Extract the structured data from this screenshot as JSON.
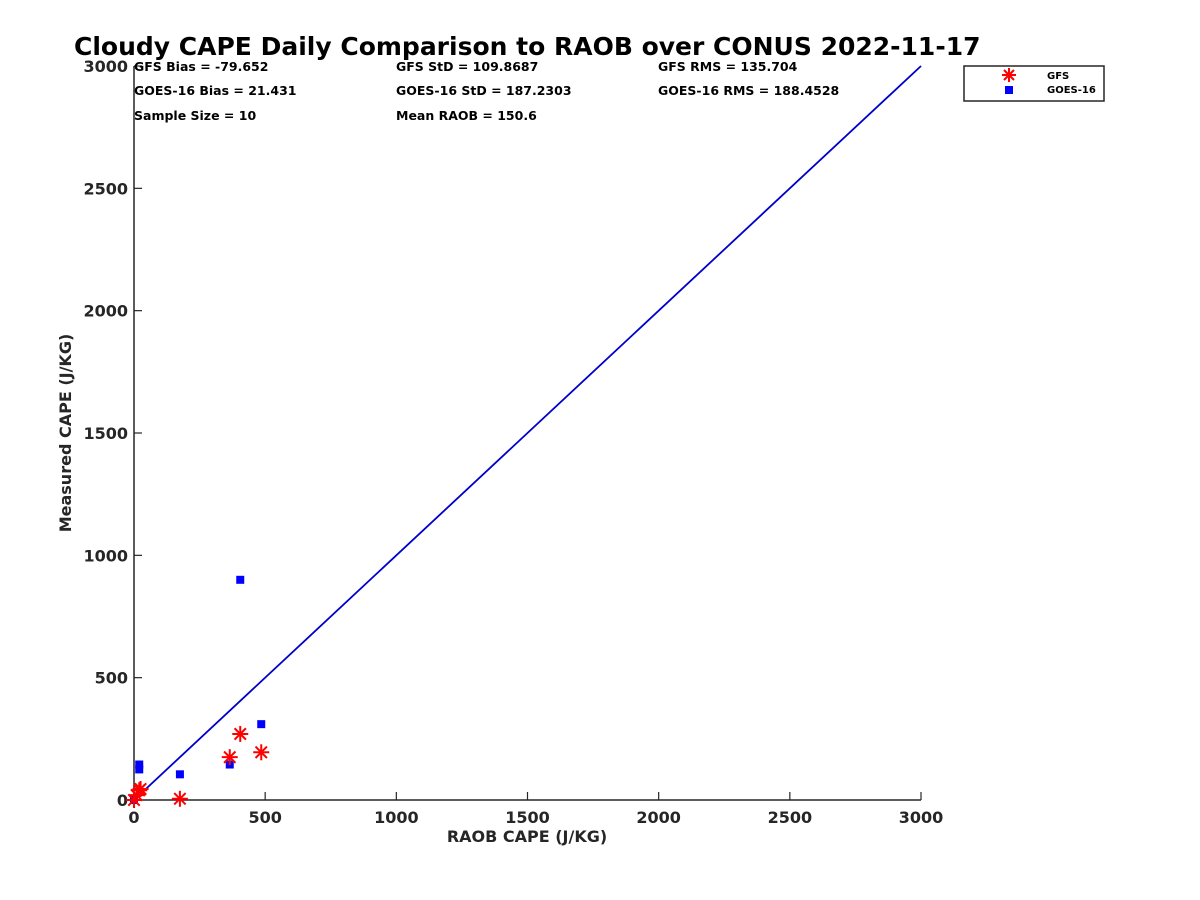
{
  "chart_data": {
    "type": "scatter",
    "title": "Cloudy CAPE Daily Comparison to RAOB over CONUS 2022-11-17",
    "xlabel": "RAOB CAPE (J/KG)",
    "ylabel": "Measured CAPE (J/KG)",
    "xlim": [
      0,
      3000
    ],
    "ylim": [
      0,
      3000
    ],
    "xticks": [
      "0",
      "500",
      "1000",
      "1500",
      "2000",
      "2500",
      "3000"
    ],
    "yticks": [
      "0",
      "500",
      "1000",
      "1500",
      "2000",
      "2500",
      "3000"
    ],
    "grid": false,
    "legend_position": "top-right (outside plot)",
    "reference_line": {
      "from": [
        0,
        0
      ],
      "to": [
        3000,
        3000
      ],
      "color": "#0000cc"
    },
    "series": [
      {
        "name": "GFS",
        "marker": "asterisk",
        "color": "#ff0000",
        "points": [
          [
            0,
            0
          ],
          [
            10,
            20
          ],
          [
            20,
            40
          ],
          [
            25,
            45
          ],
          [
            175,
            5
          ],
          [
            365,
            175
          ],
          [
            405,
            270
          ],
          [
            485,
            195
          ]
        ]
      },
      {
        "name": "GOES-16",
        "marker": "square",
        "color": "#0000ff",
        "points": [
          [
            0,
            0
          ],
          [
            20,
            125
          ],
          [
            20,
            145
          ],
          [
            175,
            105
          ],
          [
            365,
            145
          ],
          [
            405,
            900
          ],
          [
            485,
            310
          ]
        ]
      }
    ],
    "annotations": [
      "GFS Bias = -79.652",
      "GFS StD = 109.8687",
      "GFS RMS = 135.704",
      "GOES-16 Bias = 21.431",
      "GOES-16 StD = 187.2303",
      "GOES-16 RMS = 188.4528",
      "Sample Size = 10",
      "Mean RAOB = 150.6"
    ]
  },
  "stats": {
    "gfs_bias": "GFS Bias = -79.652",
    "gfs_std": "GFS StD = 109.8687",
    "gfs_rms": "GFS RMS = 135.704",
    "goes_bias": "GOES-16 Bias = 21.431",
    "goes_std": "GOES-16 StD = 187.2303",
    "goes_rms": "GOES-16 RMS = 188.4528",
    "sample_size": "Sample Size = 10",
    "mean_raob": "Mean RAOB = 150.6"
  },
  "legend": {
    "gfs_label": "GFS",
    "goes_label": "GOES-16"
  }
}
